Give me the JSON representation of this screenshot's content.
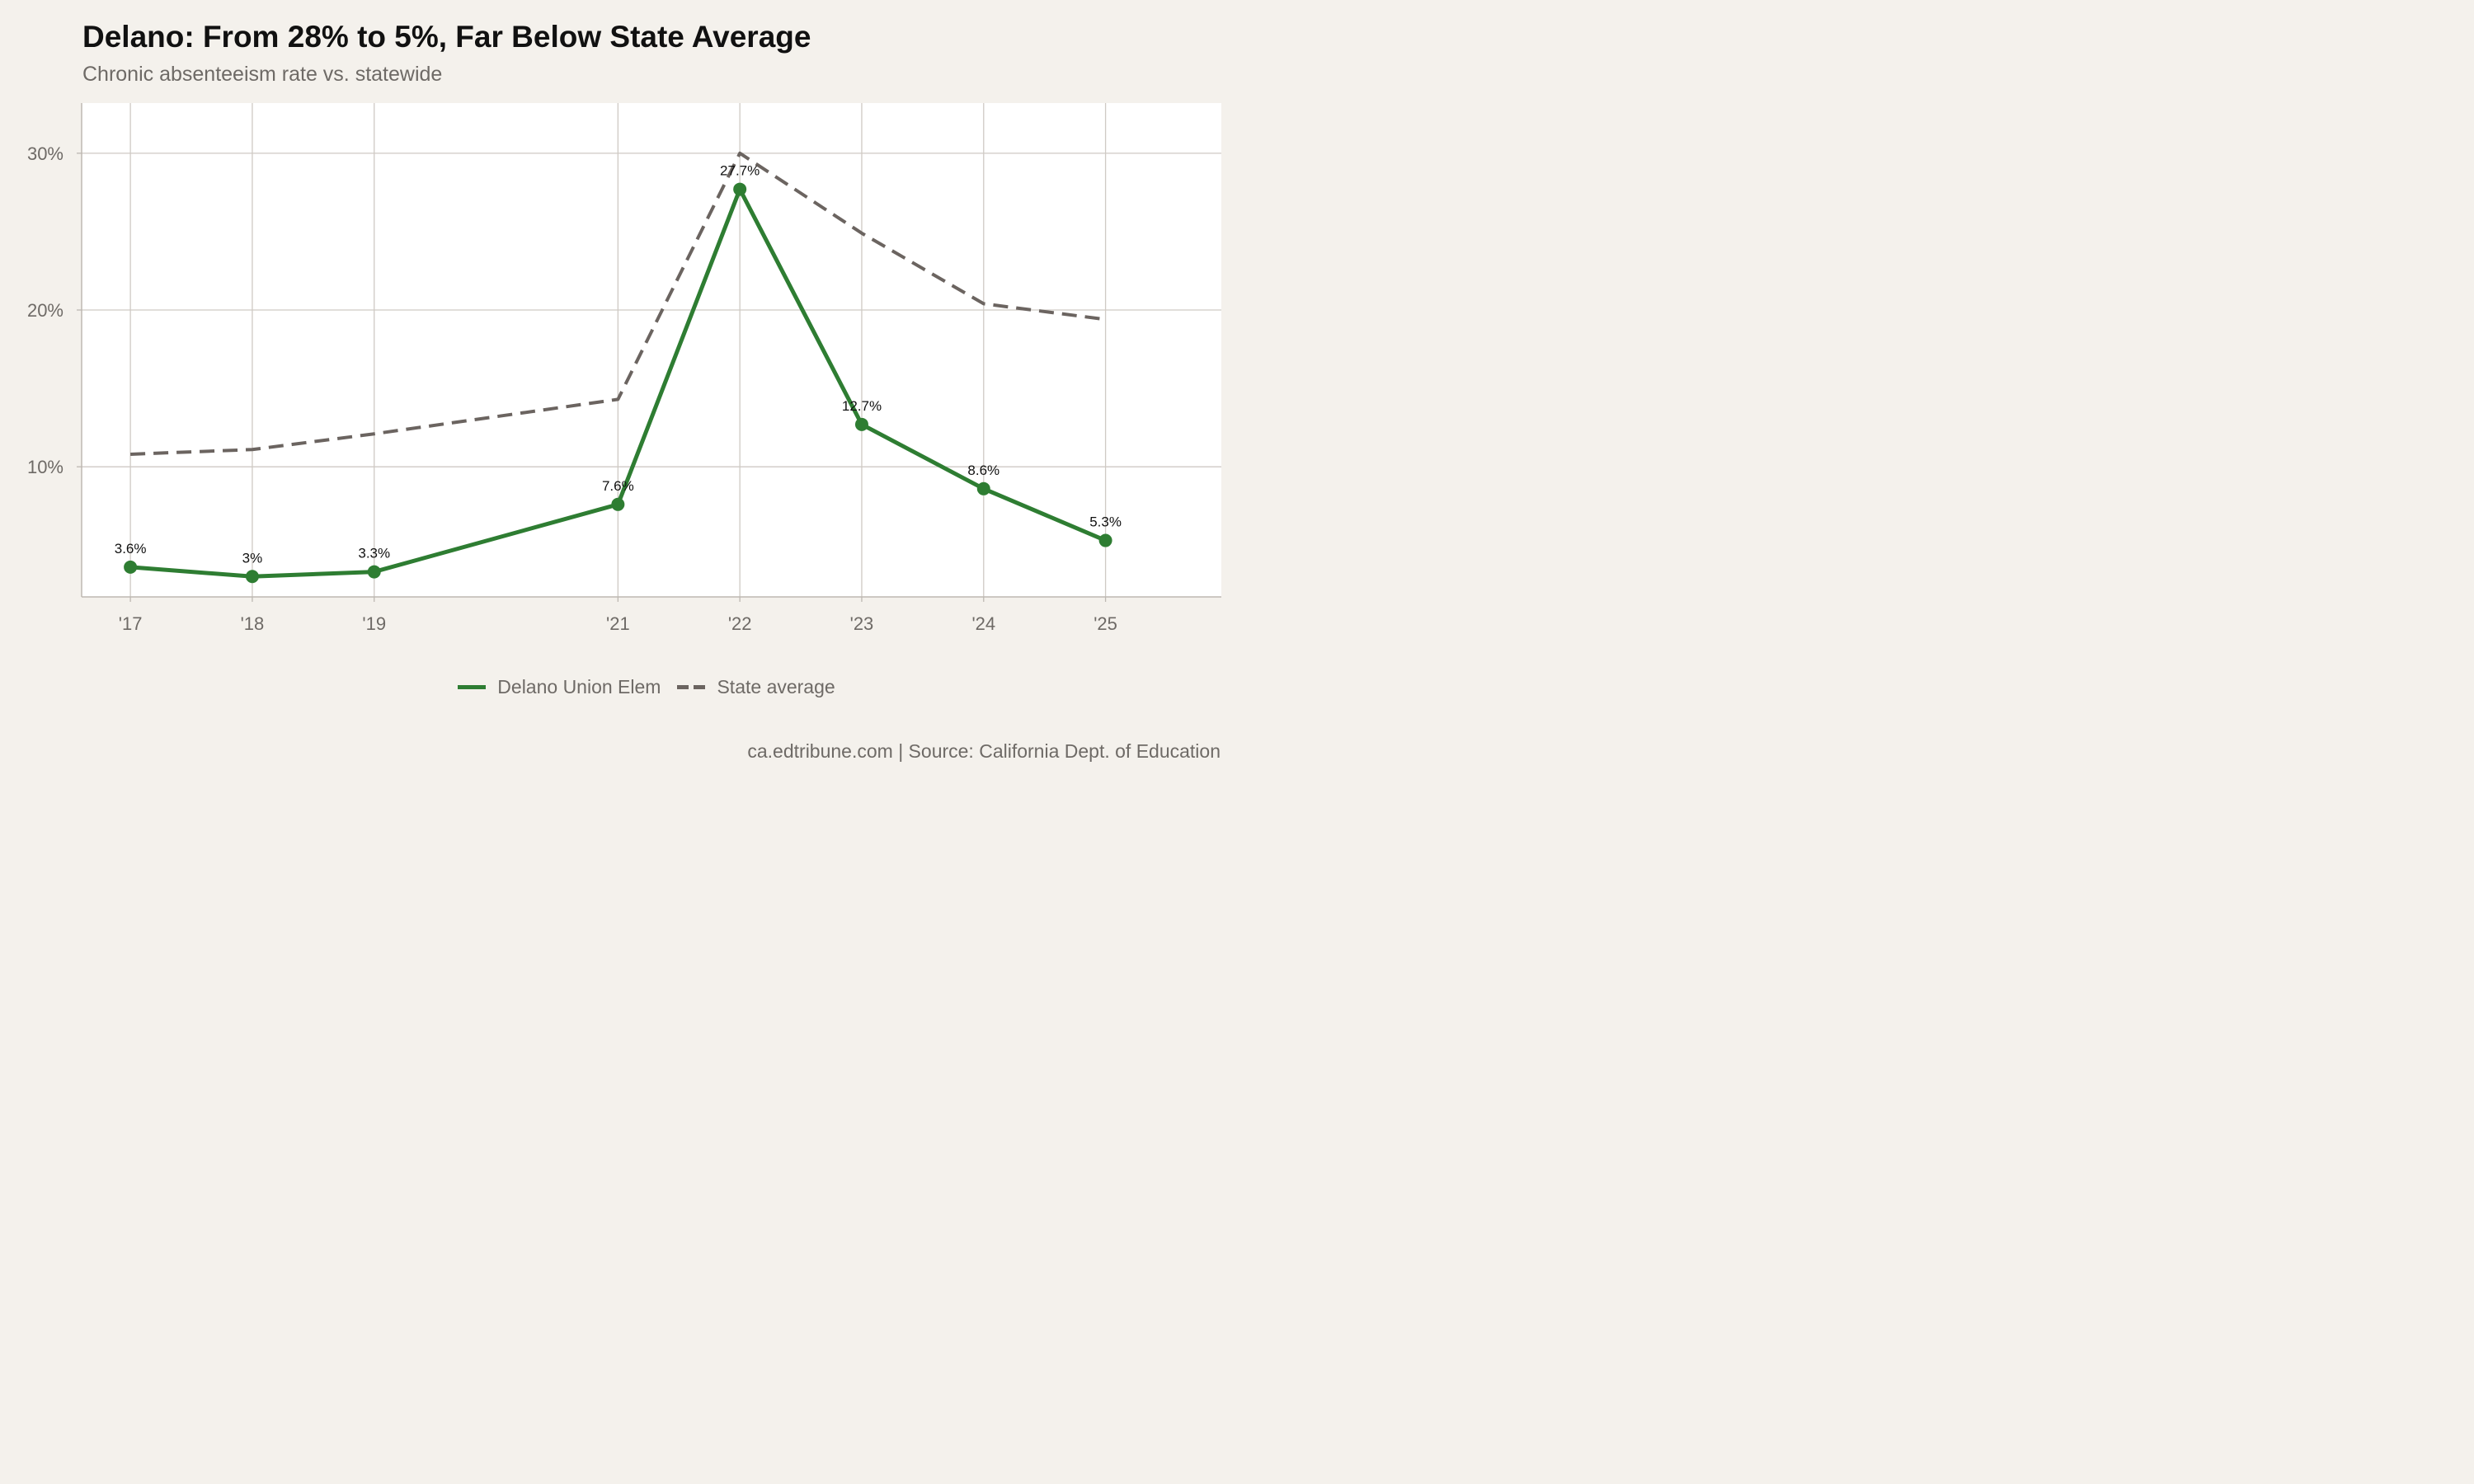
{
  "header": {
    "title": "Delano: From 28% to 5%, Far Below State Average",
    "subtitle": "Chronic absenteeism rate vs. statewide"
  },
  "footer": {
    "caption": "ca.edtribune.com | Source: California Dept. of Education"
  },
  "legend": {
    "district_label": "Delano Union Elem",
    "state_label": "State average"
  },
  "colors": {
    "district": "#2e7d32",
    "state": "#6b6460",
    "grid": "#cfcac4",
    "panel": "#ffffff",
    "background": "#f4f1ec"
  },
  "chart_data": {
    "type": "line",
    "x": [
      2017,
      2018,
      2019,
      2021,
      2022,
      2023,
      2024,
      2025
    ],
    "x_tick_labels": [
      "'17",
      "'18",
      "'19",
      "'21",
      "'22",
      "'23",
      "'24",
      "'25"
    ],
    "y_ticks": [
      10,
      20,
      30
    ],
    "y_tick_labels": [
      "10%",
      "20%",
      "30%"
    ],
    "ylim": [
      1.7,
      33.2
    ],
    "xlim": [
      2016.6,
      2025.95
    ],
    "grid": true,
    "legend_position": "bottom",
    "series": [
      {
        "name": "Delano Union Elem",
        "values": [
          3.6,
          3.0,
          3.3,
          7.6,
          27.7,
          12.7,
          8.6,
          5.3
        ],
        "data_labels": [
          "3.6%",
          "3%",
          "3.3%",
          "7.6%",
          "27.7%",
          "12.7%",
          "8.6%",
          "5.3%"
        ],
        "style": "solid"
      },
      {
        "name": "State average",
        "values": [
          10.8,
          11.1,
          12.1,
          14.3,
          30.0,
          24.9,
          20.4,
          19.4
        ],
        "style": "dashed"
      }
    ]
  }
}
